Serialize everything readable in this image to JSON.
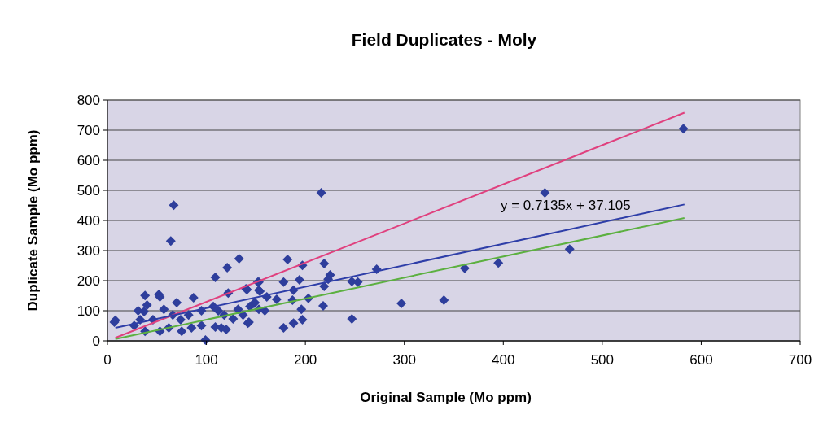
{
  "chart_data": {
    "type": "scatter",
    "title": "Field Duplicates - Moly",
    "xlabel": "Original Sample (Mo ppm)",
    "ylabel": "Duplicate Sample (Mo ppm)",
    "xlim": [
      0,
      700
    ],
    "xticks": [
      0,
      100,
      200,
      300,
      400,
      500,
      600,
      700
    ],
    "ylim": [
      0,
      800
    ],
    "yticks": [
      0,
      100,
      200,
      300,
      400,
      500,
      600,
      700,
      800
    ],
    "grid": "y",
    "annotations": [
      "y = 0.7135x + 37.105"
    ],
    "series": [
      {
        "marker": "diamond",
        "color": "#2e3e9c",
        "x": [
          7,
          67,
          64,
          133,
          121,
          109,
          153,
          38,
          52,
          53,
          70,
          87,
          40,
          31,
          37,
          57,
          8,
          99,
          142,
          127,
          122,
          153,
          140,
          107,
          112,
          118,
          132,
          148,
          95,
          82,
          74,
          66,
          53,
          62,
          75,
          85,
          95,
          109,
          115,
          120,
          27,
          38,
          46,
          33,
          137,
          159,
          216,
          182,
          197,
          219,
          272,
          225,
          223,
          178,
          194,
          219,
          247,
          253,
          152,
          141,
          154,
          188,
          161,
          171,
          203,
          187,
          196,
          218,
          297,
          149,
          144,
          153,
          143,
          178,
          188,
          197,
          247,
          340,
          361,
          395,
          442,
          467,
          582
        ],
        "values": [
          62,
          451,
          332,
          273,
          243,
          211,
          195,
          151,
          154,
          146,
          127,
          143,
          119,
          100,
          97,
          105,
          68,
          3,
          59,
          73,
          159,
          168,
          173,
          114,
          100,
          86,
          105,
          124,
          100,
          86,
          70,
          86,
          32,
          43,
          32,
          43,
          51,
          46,
          43,
          38,
          51,
          32,
          70,
          70,
          86,
          100,
          492,
          270,
          251,
          257,
          238,
          219,
          205,
          195,
          203,
          181,
          197,
          195,
          195,
          170,
          165,
          168,
          146,
          138,
          141,
          135,
          105,
          116,
          124,
          127,
          114,
          105,
          62,
          43,
          59,
          70,
          73,
          135,
          241,
          259,
          492,
          305,
          705
        ]
      },
      {
        "type": "line",
        "color": "#e0407e",
        "x": [
          8,
          583
        ],
        "values": [
          10,
          758
        ],
        "marker": "none"
      },
      {
        "type": "line",
        "color": "#2e3ea8",
        "x": [
          8,
          583
        ],
        "values": [
          43,
          453
        ],
        "marker": "none"
      },
      {
        "type": "line",
        "color": "#5cb040",
        "x": [
          8,
          583
        ],
        "values": [
          6,
          408
        ],
        "marker": "none"
      }
    ]
  }
}
